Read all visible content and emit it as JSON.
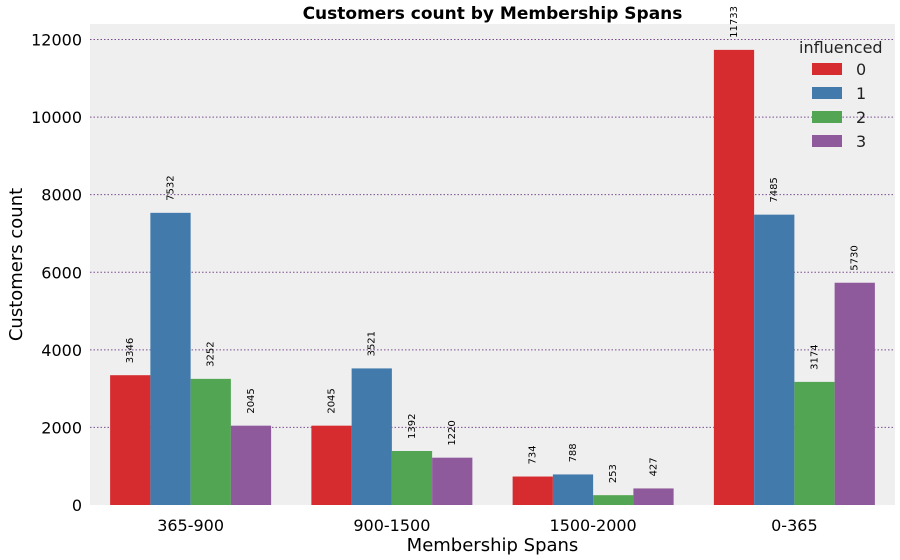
{
  "chart_data": {
    "type": "bar",
    "title": "Customers count by Membership Spans",
    "xlabel": "Membership Spans",
    "ylabel": "Customers count",
    "categories": [
      "365-900",
      "900-1500",
      "1500-2000",
      "0-365"
    ],
    "ylim": [
      0,
      12400
    ],
    "yticks": [
      "0",
      "2000",
      "4000",
      "6000",
      "8000",
      "10000",
      "12000"
    ],
    "grid": true,
    "legend": {
      "title": "influenced",
      "position": "top-right"
    },
    "series": [
      {
        "name": "0",
        "color": "#d62b2f",
        "values": [
          3346,
          2045,
          734,
          11733
        ]
      },
      {
        "name": "1",
        "color": "#437aac",
        "values": [
          7532,
          3521,
          788,
          7485
        ]
      },
      {
        "name": "2",
        "color": "#52a552",
        "values": [
          3252,
          1392,
          253,
          3174
        ]
      },
      {
        "name": "3",
        "color": "#8f5a9c",
        "values": [
          2045,
          1220,
          427,
          5730
        ]
      }
    ],
    "plot_background": "#efefef",
    "grid_color": "#7a4e8e"
  }
}
